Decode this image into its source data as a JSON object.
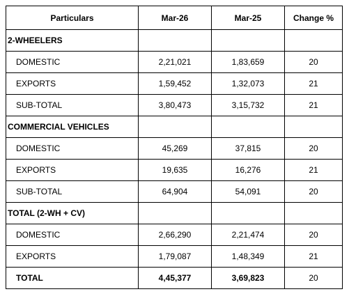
{
  "table": {
    "headers": [
      "Particulars",
      "Mar-26",
      "Mar-25",
      "Change %"
    ],
    "sections": [
      {
        "title": "2-WHEELERS",
        "rows": [
          {
            "label": "DOMESTIC",
            "mar26": "2,21,021",
            "mar25": "1,83,659",
            "change": "20"
          },
          {
            "label": "EXPORTS",
            "mar26": "1,59,452",
            "mar25": "1,32,073",
            "change": "21"
          },
          {
            "label": "SUB-TOTAL",
            "mar26": "3,80,473",
            "mar25": "3,15,732",
            "change": "21"
          }
        ]
      },
      {
        "title": "COMMERCIAL VEHICLES",
        "rows": [
          {
            "label": "DOMESTIC",
            "mar26": "45,269",
            "mar25": "37,815",
            "change": "20"
          },
          {
            "label": "EXPORTS",
            "mar26": "19,635",
            "mar25": "16,276",
            "change": "21"
          },
          {
            "label": "SUB-TOTAL",
            "mar26": "64,904",
            "mar25": "54,091",
            "change": "20"
          }
        ]
      },
      {
        "title": "TOTAL (2-WH + CV)",
        "rows": [
          {
            "label": "DOMESTIC",
            "mar26": "2,66,290",
            "mar25": "2,21,474",
            "change": "20"
          },
          {
            "label": "EXPORTS",
            "mar26": "1,79,087",
            "mar25": "1,48,349",
            "change": "21"
          }
        ]
      }
    ],
    "total": {
      "label": "TOTAL",
      "mar26": "4,45,377",
      "mar25": "3,69,823",
      "change": "20"
    }
  }
}
